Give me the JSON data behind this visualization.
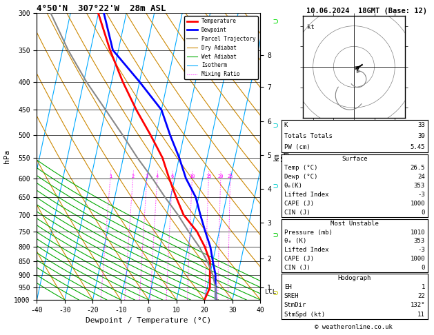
{
  "title_left": "4°50'N  307°22'W  28m ASL",
  "title_right": "10.06.2024  18GMT (Base: 12)",
  "xlabel": "Dewpoint / Temperature (°C)",
  "ylabel_left": "hPa",
  "pressure_levels": [
    300,
    350,
    400,
    450,
    500,
    550,
    600,
    650,
    700,
    750,
    800,
    850,
    900,
    950,
    1000
  ],
  "km_labels": [
    "8",
    "7",
    "6",
    "5",
    "4",
    "3",
    "2",
    "1",
    "LCL"
  ],
  "km_pressures": [
    358,
    408,
    472,
    544,
    628,
    722,
    840,
    950,
    967
  ],
  "xlim": [
    -40,
    40
  ],
  "skew": 22,
  "temp_profile": {
    "temps": [
      20,
      21,
      20,
      19,
      16,
      12,
      6,
      2,
      -2,
      -6,
      -12,
      -19,
      -26,
      -33,
      -40
    ],
    "pressures": [
      1000,
      950,
      900,
      850,
      800,
      750,
      700,
      650,
      600,
      550,
      500,
      450,
      400,
      350,
      300
    ],
    "color": "#ff0000",
    "lw": 2.0
  },
  "dewp_profile": {
    "temps": [
      24,
      23,
      22,
      20,
      18,
      15,
      12,
      9,
      4,
      0,
      -5,
      -10,
      -20,
      -32,
      -38
    ],
    "pressures": [
      1000,
      950,
      900,
      850,
      800,
      750,
      700,
      650,
      600,
      550,
      500,
      450,
      400,
      350,
      300
    ],
    "color": "#0000ff",
    "lw": 2.0
  },
  "parcel_profile": {
    "temps": [
      24,
      23,
      21,
      18,
      14,
      9,
      4,
      -2,
      -8,
      -15,
      -22,
      -30,
      -39,
      -48,
      -57
    ],
    "pressures": [
      1000,
      950,
      900,
      850,
      800,
      750,
      700,
      650,
      600,
      550,
      500,
      450,
      400,
      350,
      300
    ],
    "color": "#888888",
    "lw": 1.5
  },
  "mixing_ratio_values": [
    1,
    2,
    3,
    4,
    6,
    10,
    15,
    20,
    25
  ],
  "mixing_ratio_color": "#ff00ff",
  "isotherm_color": "#00aaff",
  "isotherm_lw": 0.8,
  "dry_adiabat_color": "#cc8800",
  "dry_adiabat_lw": 0.8,
  "wet_adiabat_color": "#00aa00",
  "wet_adiabat_lw": 0.8,
  "background_color": "#ffffff",
  "legend_items": [
    {
      "label": "Temperature",
      "color": "#ff0000",
      "lw": 2.0,
      "ls": "solid"
    },
    {
      "label": "Dewpoint",
      "color": "#0000ff",
      "lw": 2.0,
      "ls": "solid"
    },
    {
      "label": "Parcel Trajectory",
      "color": "#888888",
      "lw": 1.5,
      "ls": "solid"
    },
    {
      "label": "Dry Adiabat",
      "color": "#cc8800",
      "lw": 0.8,
      "ls": "solid"
    },
    {
      "label": "Wet Adiabat",
      "color": "#00aa00",
      "lw": 0.8,
      "ls": "solid"
    },
    {
      "label": "Isotherm",
      "color": "#00aaff",
      "lw": 0.8,
      "ls": "solid"
    },
    {
      "label": "Mixing Ratio",
      "color": "#ff00ff",
      "lw": 0.8,
      "ls": "dotted"
    }
  ],
  "info_K": "33",
  "info_TT": "39",
  "info_PW": "5.45",
  "info_sfc_temp": "26.5",
  "info_sfc_dewp": "24",
  "info_sfc_thetae": "353",
  "info_sfc_LI": "-3",
  "info_sfc_CAPE": "1000",
  "info_sfc_CIN": "0",
  "info_mu_pres": "1010",
  "info_mu_thetae": "353",
  "info_mu_LI": "-3",
  "info_mu_CAPE": "1000",
  "info_mu_CIN": "0",
  "info_EH": "1",
  "info_SREH": "22",
  "info_StmDir": "132°",
  "info_StmSpd": "11",
  "copyright": "© weatheronline.co.uk",
  "wind_marker_colors": [
    "#00dd00",
    "#00cccc",
    "#00cccc",
    "#00cc00",
    "#cccc00"
  ],
  "wind_marker_ys_pressure": [
    310,
    480,
    620,
    760,
    970
  ]
}
